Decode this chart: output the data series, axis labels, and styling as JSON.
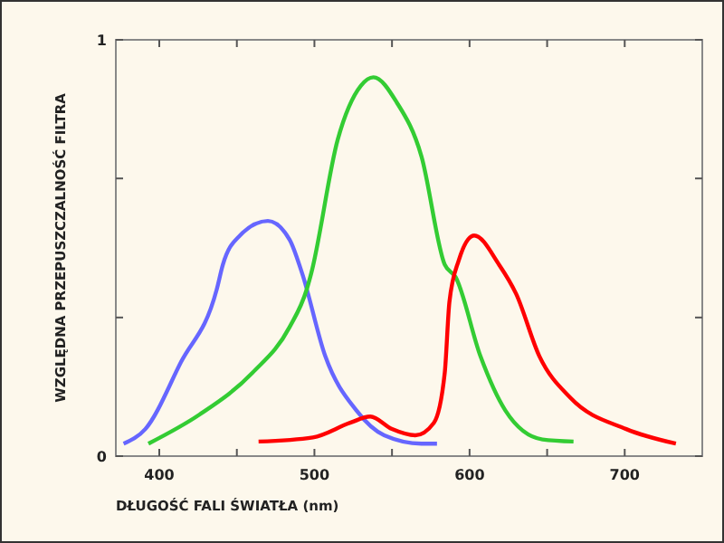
{
  "chart_data": {
    "type": "line",
    "xlabel": "DŁUGOŚĆ FALI ŚWIATŁA (nm)",
    "ylabel": "WZGLĘDNA PRZEPUSZCZALNOŚĆ FILTRA",
    "xlim": [
      372,
      750
    ],
    "xticks": [
      400,
      {
        "value": 450,
        "label": null
      },
      500,
      {
        "value": 550,
        "label": null
      },
      600,
      {
        "value": 650,
        "label": null
      },
      700
    ],
    "ylim": [
      0,
      1
    ],
    "yticks": [
      0,
      {
        "value": 0.333,
        "label": null
      },
      {
        "value": 0.667,
        "label": null
      },
      1
    ],
    "grid": false,
    "marker": "none",
    "line_style": "solid",
    "series": [
      {
        "color": "#6666ff",
        "x": [
          377,
          391,
          414,
          437,
          441,
          452,
          470,
          484,
          492,
          507,
          527,
          545,
          569,
          579
        ],
        "values": [
          0.03,
          0.065,
          0.226,
          0.4,
          0.46,
          0.53,
          0.565,
          0.52,
          0.44,
          0.24,
          0.11,
          0.05,
          0.03,
          0.03
        ]
      },
      {
        "color": "#33cc33",
        "x": [
          393,
          426,
          460,
          484,
          495,
          498,
          515,
          530,
          538,
          553,
          569,
          584,
          591,
          607,
          623,
          647,
          667
        ],
        "values": [
          0.03,
          0.1,
          0.2,
          0.31,
          0.4,
          0.44,
          0.76,
          0.89,
          0.91,
          0.85,
          0.72,
          0.46,
          0.43,
          0.24,
          0.11,
          0.04,
          0.035
        ]
      },
      {
        "color": "#ff0000",
        "x": [
          464,
          499,
          523,
          536,
          550,
          565,
          577,
          584,
          587,
          593,
          603,
          619,
          630,
          645,
          665,
          701,
          733
        ],
        "values": [
          0.035,
          0.045,
          0.08,
          0.095,
          0.065,
          0.05,
          0.08,
          0.2,
          0.37,
          0.47,
          0.53,
          0.46,
          0.39,
          0.24,
          0.14,
          0.065,
          0.03
        ]
      }
    ]
  }
}
